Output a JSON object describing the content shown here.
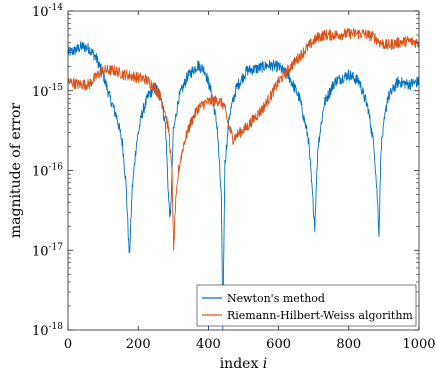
{
  "chart_data": {
    "type": "line",
    "title": "",
    "xlabel": "index i",
    "ylabel": "magnitude of error",
    "xlim": [
      0,
      1000
    ],
    "ylim": [
      1e-18,
      1e-14
    ],
    "yscale": "log",
    "grid": false,
    "legend_position": "bottom-right",
    "x_ticks": [
      0,
      200,
      400,
      600,
      800,
      1000
    ],
    "x_tick_labels": [
      "0",
      "200",
      "400",
      "600",
      "800",
      "1000"
    ],
    "y_ticks": [
      1e-18,
      1e-17,
      1e-16,
      1e-15,
      1e-14
    ],
    "y_tick_labels": [
      {
        "base": "10",
        "exp": "-18"
      },
      {
        "base": "10",
        "exp": "-17"
      },
      {
        "base": "10",
        "exp": "-16"
      },
      {
        "base": "10",
        "exp": "-15"
      },
      {
        "base": "10",
        "exp": "-14"
      }
    ],
    "series": [
      {
        "name": "Newton's method",
        "color": "#0072BD",
        "points": [
          [
            0,
            3e-15
          ],
          [
            20,
            3.2e-15
          ],
          [
            40,
            3.6e-15
          ],
          [
            60,
            3.4e-15
          ],
          [
            80,
            2.6e-15
          ],
          [
            100,
            1.6e-15
          ],
          [
            120,
            8e-16
          ],
          [
            140,
            4.5e-16
          ],
          [
            155,
            2.2e-16
          ],
          [
            165,
            7e-17
          ],
          [
            175,
            8e-18
          ],
          [
            183,
            6e-17
          ],
          [
            195,
            2.2e-16
          ],
          [
            210,
            5e-16
          ],
          [
            230,
            9e-16
          ],
          [
            250,
            1.1e-15
          ],
          [
            265,
            8.5e-16
          ],
          [
            278,
            3.5e-16
          ],
          [
            287,
            4e-17
          ],
          [
            292,
            2.5e-17
          ],
          [
            300,
            3e-16
          ],
          [
            315,
            8e-16
          ],
          [
            340,
            1.5e-15
          ],
          [
            370,
            2.1e-15
          ],
          [
            390,
            1.8e-15
          ],
          [
            410,
            9e-16
          ],
          [
            425,
            3.5e-16
          ],
          [
            437,
            4.5e-17
          ],
          [
            441,
            1e-18
          ],
          [
            447,
            1.2e-16
          ],
          [
            460,
            5e-16
          ],
          [
            480,
            1.1e-15
          ],
          [
            510,
            1.8e-15
          ],
          [
            540,
            1.9e-15
          ],
          [
            570,
            2.1e-15
          ],
          [
            600,
            2e-15
          ],
          [
            630,
            1.5e-15
          ],
          [
            660,
            8e-16
          ],
          [
            685,
            2.5e-16
          ],
          [
            698,
            4e-17
          ],
          [
            703,
            2e-17
          ],
          [
            712,
            2e-16
          ],
          [
            730,
            7e-16
          ],
          [
            760,
            1.3e-15
          ],
          [
            800,
            1.6e-15
          ],
          [
            830,
            1.3e-15
          ],
          [
            855,
            6e-16
          ],
          [
            872,
            2e-16
          ],
          [
            882,
            4e-17
          ],
          [
            886,
            1.6e-17
          ],
          [
            892,
            2e-16
          ],
          [
            910,
            8e-16
          ],
          [
            940,
            1.3e-15
          ],
          [
            970,
            1.2e-15
          ],
          [
            1000,
            1.3e-15
          ]
        ]
      },
      {
        "name": "Riemann-Hilbert-Weiss algorithm",
        "color": "#D95319",
        "points": [
          [
            0,
            1.3e-15
          ],
          [
            30,
            1.2e-15
          ],
          [
            60,
            1.2e-15
          ],
          [
            80,
            1.5e-15
          ],
          [
            100,
            1.8e-15
          ],
          [
            130,
            1.8e-15
          ],
          [
            160,
            1.6e-15
          ],
          [
            190,
            1.5e-15
          ],
          [
            220,
            1.4e-15
          ],
          [
            240,
            1.2e-15
          ],
          [
            260,
            9e-16
          ],
          [
            275,
            6e-16
          ],
          [
            288,
            3e-16
          ],
          [
            297,
            8e-17
          ],
          [
            301,
            9e-18
          ],
          [
            305,
            3e-17
          ],
          [
            315,
            1e-16
          ],
          [
            330,
            2.2e-16
          ],
          [
            350,
            4e-16
          ],
          [
            370,
            6e-16
          ],
          [
            390,
            7e-16
          ],
          [
            410,
            7.5e-16
          ],
          [
            430,
            7.5e-16
          ],
          [
            445,
            6.5e-16
          ],
          [
            455,
            4e-16
          ],
          [
            470,
            2.5e-16
          ],
          [
            490,
            3e-16
          ],
          [
            510,
            3.5e-16
          ],
          [
            530,
            4.5e-16
          ],
          [
            555,
            6e-16
          ],
          [
            580,
            9e-16
          ],
          [
            600,
            1.3e-15
          ],
          [
            630,
            1.9e-15
          ],
          [
            660,
            2.7e-15
          ],
          [
            690,
            3.8e-15
          ],
          [
            710,
            4.6e-15
          ],
          [
            730,
            5e-15
          ],
          [
            760,
            5e-15
          ],
          [
            800,
            5.2e-15
          ],
          [
            840,
            5.2e-15
          ],
          [
            870,
            4.8e-15
          ],
          [
            890,
            4e-15
          ],
          [
            910,
            3.7e-15
          ],
          [
            940,
            4e-15
          ],
          [
            970,
            4.2e-15
          ],
          [
            1000,
            4e-15
          ]
        ]
      }
    ]
  }
}
